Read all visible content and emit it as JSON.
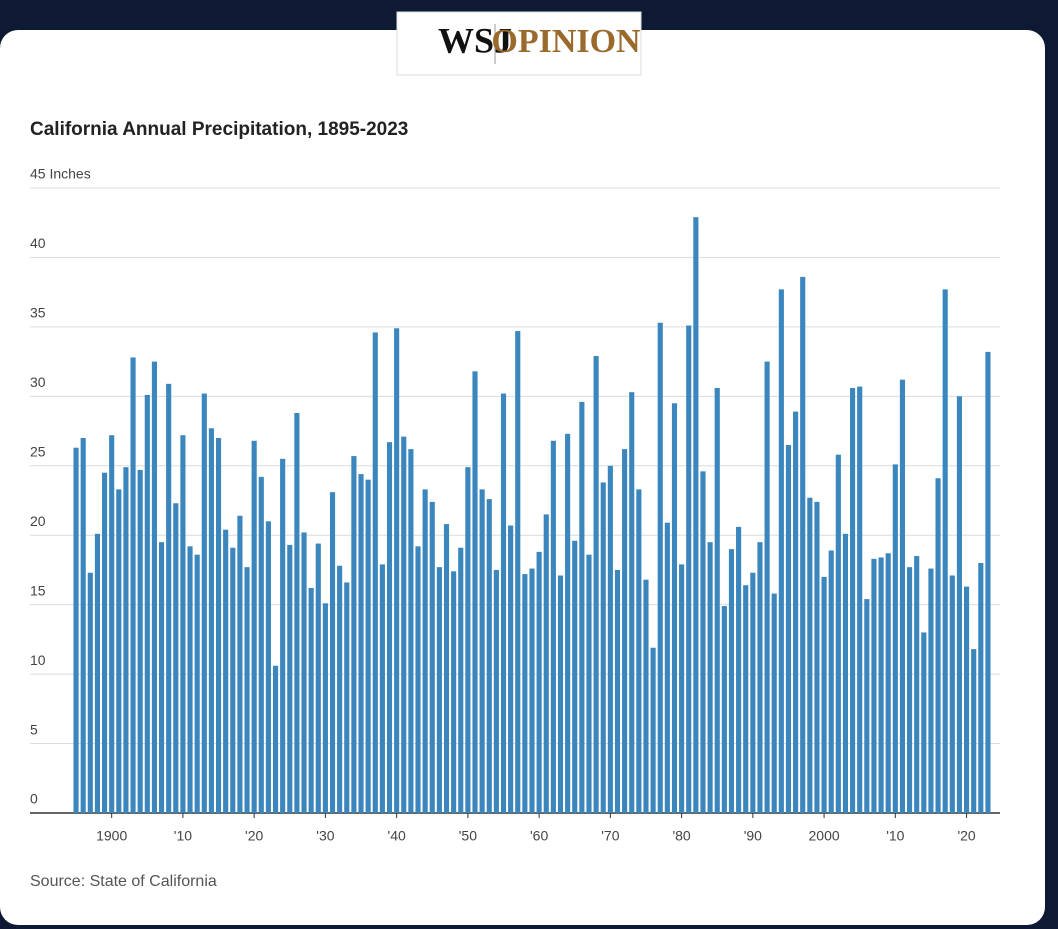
{
  "header": {
    "brand": "WSJ",
    "section": "OPINION"
  },
  "chart_data": {
    "type": "bar",
    "title": "California Annual Precipitation, 1895-2023",
    "source": "Source: State of California",
    "color": "#3b86bd",
    "grid": true,
    "x": [
      1895,
      1896,
      1897,
      1898,
      1899,
      1900,
      1901,
      1902,
      1903,
      1904,
      1905,
      1906,
      1907,
      1908,
      1909,
      1910,
      1911,
      1912,
      1913,
      1914,
      1915,
      1916,
      1917,
      1918,
      1919,
      1920,
      1921,
      1922,
      1923,
      1924,
      1925,
      1926,
      1927,
      1928,
      1929,
      1930,
      1931,
      1932,
      1933,
      1934,
      1935,
      1936,
      1937,
      1938,
      1939,
      1940,
      1941,
      1942,
      1943,
      1944,
      1945,
      1946,
      1947,
      1948,
      1949,
      1950,
      1951,
      1952,
      1953,
      1954,
      1955,
      1956,
      1957,
      1958,
      1959,
      1960,
      1961,
      1962,
      1963,
      1964,
      1965,
      1966,
      1967,
      1968,
      1969,
      1970,
      1971,
      1972,
      1973,
      1974,
      1975,
      1976,
      1977,
      1978,
      1979,
      1980,
      1981,
      1982,
      1983,
      1984,
      1985,
      1986,
      1987,
      1988,
      1989,
      1990,
      1991,
      1992,
      1993,
      1994,
      1995,
      1996,
      1997,
      1998,
      1999,
      2000,
      2001,
      2002,
      2003,
      2004,
      2005,
      2006,
      2007,
      2008,
      2009,
      2010,
      2011,
      2012,
      2013,
      2014,
      2015,
      2016,
      2017,
      2018,
      2019,
      2020,
      2021,
      2022,
      2023
    ],
    "values": [
      26.3,
      27,
      17.3,
      20.1,
      24.5,
      27.2,
      23.3,
      24.9,
      32.8,
      24.7,
      30.1,
      32.5,
      19.5,
      30.9,
      22.3,
      27.2,
      19.2,
      18.6,
      30.2,
      27.7,
      27,
      20.4,
      19.1,
      21.4,
      17.7,
      26.8,
      24.2,
      21,
      10.6,
      25.5,
      19.3,
      28.8,
      20.2,
      16.2,
      19.4,
      15.1,
      23.1,
      17.8,
      16.6,
      25.7,
      24.4,
      24,
      34.6,
      17.9,
      26.7,
      34.9,
      27.1,
      26.2,
      19.2,
      23.3,
      22.4,
      17.7,
      20.8,
      17.4,
      19.1,
      24.9,
      31.8,
      23.3,
      22.6,
      17.5,
      30.2,
      20.7,
      34.7,
      17.2,
      17.6,
      18.8,
      21.5,
      26.8,
      17.1,
      27.3,
      19.6,
      29.6,
      18.6,
      32.9,
      23.8,
      25,
      17.5,
      26.2,
      30.3,
      23.3,
      16.8,
      11.9,
      35.3,
      20.9,
      29.5,
      17.9,
      35.1,
      42.9,
      24.6,
      19.5,
      30.6,
      14.9,
      19,
      20.6,
      16.4,
      17.3,
      19.5,
      32.5,
      15.8,
      37.7,
      26.5,
      28.9,
      38.6,
      22.7,
      22.4,
      17,
      18.9,
      25.8,
      20.1,
      30.6,
      30.7,
      15.4,
      18.3,
      18.4,
      18.7,
      25.1,
      31.2,
      17.7,
      18.5,
      13,
      17.6,
      24.1,
      37.7,
      17.1,
      30,
      16.3,
      11.8,
      18,
      33.2
    ],
    "xlim": [
      1894.5,
      2023.5
    ],
    "xticks": [
      {
        "value": 1900,
        "label": "1900"
      },
      {
        "value": 1910,
        "label": "'10"
      },
      {
        "value": 1920,
        "label": "'20"
      },
      {
        "value": 1930,
        "label": "'30"
      },
      {
        "value": 1940,
        "label": "'40"
      },
      {
        "value": 1950,
        "label": "'50"
      },
      {
        "value": 1960,
        "label": "'60"
      },
      {
        "value": 1970,
        "label": "'70"
      },
      {
        "value": 1980,
        "label": "'80"
      },
      {
        "value": 1990,
        "label": "'90"
      },
      {
        "value": 2000,
        "label": "2000"
      },
      {
        "value": 2010,
        "label": "'10"
      },
      {
        "value": 2020,
        "label": "'20"
      }
    ],
    "ylim": [
      0,
      45
    ],
    "yticks": [
      0,
      5,
      10,
      15,
      20,
      25,
      30,
      35,
      40,
      {
        "value": 45,
        "label": "45 Inches"
      }
    ]
  }
}
